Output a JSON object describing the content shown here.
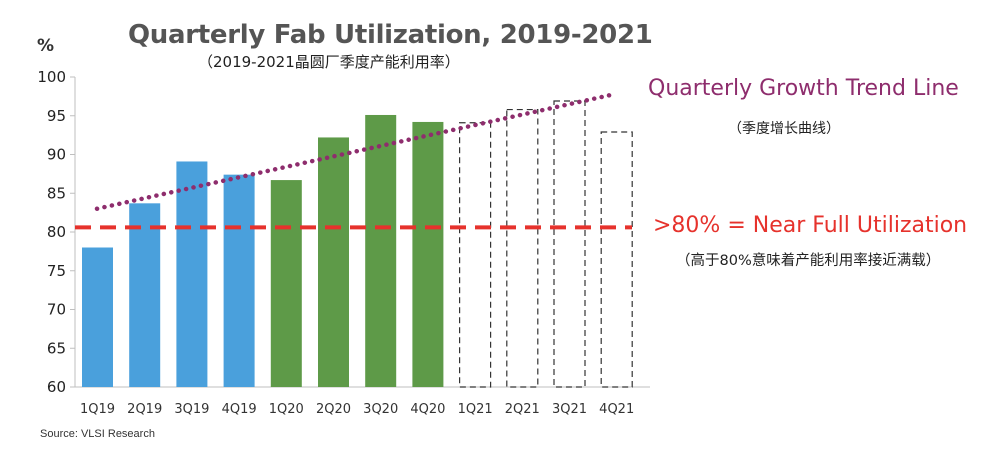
{
  "chart_data": {
    "type": "bar",
    "title": "Quarterly Fab Utilization, 2019-2021",
    "subtitle": "（2019-2021晶圆厂季度产能利用率）",
    "ylabel": "%",
    "xlabel": "",
    "ylim": [
      60,
      100
    ],
    "yticks": [
      60,
      65,
      70,
      75,
      80,
      85,
      90,
      95,
      100
    ],
    "categories": [
      "1Q19",
      "2Q19",
      "3Q19",
      "4Q19",
      "1Q20",
      "2Q20",
      "3Q20",
      "4Q20",
      "1Q21",
      "2Q21",
      "3Q21",
      "4Q21"
    ],
    "values": [
      78,
      83.7,
      89.1,
      87.4,
      86.7,
      92.2,
      95.1,
      94.2,
      94.1,
      95.8,
      96.9,
      92.9
    ],
    "groups": [
      "2019",
      "2019",
      "2019",
      "2019",
      "2020",
      "2020",
      "2020",
      "2020",
      "2021",
      "2021",
      "2021",
      "2021"
    ],
    "colors": {
      "2019": "#4aa0dc",
      "2020": "#5e9a48",
      "2021": "none",
      "trend": "#8e2d6d",
      "threshold": "#e6322c"
    },
    "trend_line": {
      "label": "Quarterly Growth Trend Line",
      "label_cn": "（季度增长曲线）",
      "start": 83,
      "end": 97.8
    },
    "threshold_line": {
      "value": 80.6,
      "label": ">80% = Near Full Utilization",
      "label_cn": "（高于80%意味着产能利用率接近满载）"
    },
    "grid": false,
    "source": "Source: VLSI Research"
  }
}
